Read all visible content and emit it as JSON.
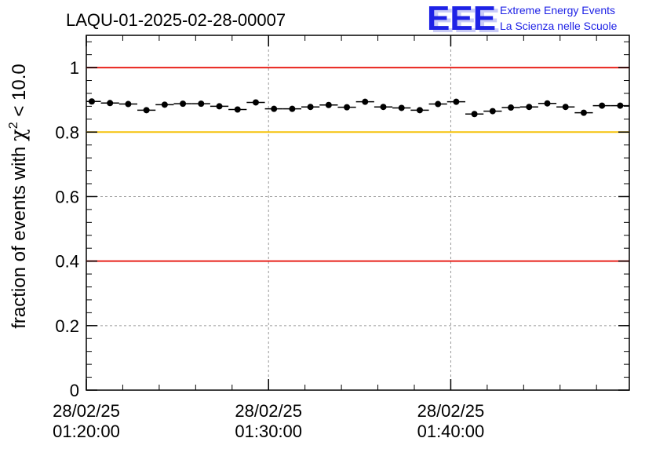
{
  "logo": {
    "mark": "EEE",
    "line1": "Extreme Energy Events",
    "line2": "La Scienza nelle Scuole",
    "color": "#1e22e6"
  },
  "chart_data": {
    "type": "scatter",
    "title": "LAQU-01-2025-02-28-00007",
    "xlabel": "",
    "ylabel_prefix": "fraction of events with ",
    "ylabel_symbol": "χ",
    "ylabel_sup": "2",
    "ylabel_suffix": " < 10.0",
    "xlim_minutes": [
      0,
      29.8
    ],
    "ylim": [
      0,
      1.1
    ],
    "grid": true,
    "x_ticks": [
      {
        "minute": 0,
        "date": "28/02/25",
        "time": "01:20:00"
      },
      {
        "minute": 10,
        "date": "28/02/25",
        "time": "01:30:00"
      },
      {
        "minute": 20,
        "date": "28/02/25",
        "time": "01:40:00"
      }
    ],
    "y_ticks": [
      {
        "value": 0,
        "label": "0"
      },
      {
        "value": 0.2,
        "label": "0.2"
      },
      {
        "value": 0.4,
        "label": "0.4"
      },
      {
        "value": 0.6,
        "label": "0.6"
      },
      {
        "value": 0.8,
        "label": "0.8"
      },
      {
        "value": 1.0,
        "label": "1"
      }
    ],
    "reference_lines": [
      {
        "value": 1.0,
        "color": "#e8231c"
      },
      {
        "value": 0.8,
        "color": "#f5c20a"
      },
      {
        "value": 0.4,
        "color": "#e8231c"
      }
    ],
    "bin_half_width_minutes": 0.5,
    "series": [
      {
        "name": "fraction",
        "x_minutes": [
          0.3,
          1.3,
          2.3,
          3.3,
          4.3,
          5.3,
          6.3,
          7.3,
          8.3,
          9.3,
          10.3,
          11.3,
          12.3,
          13.3,
          14.3,
          15.3,
          16.3,
          17.3,
          18.3,
          19.3,
          20.3,
          21.3,
          22.3,
          23.3,
          24.3,
          25.3,
          26.3,
          27.3,
          28.3,
          29.3
        ],
        "values": [
          0.895,
          0.89,
          0.887,
          0.868,
          0.885,
          0.888,
          0.888,
          0.88,
          0.87,
          0.892,
          0.872,
          0.872,
          0.878,
          0.884,
          0.877,
          0.894,
          0.878,
          0.875,
          0.868,
          0.887,
          0.894,
          0.856,
          0.865,
          0.876,
          0.878,
          0.889,
          0.878,
          0.86,
          0.882,
          0.882
        ]
      }
    ]
  }
}
